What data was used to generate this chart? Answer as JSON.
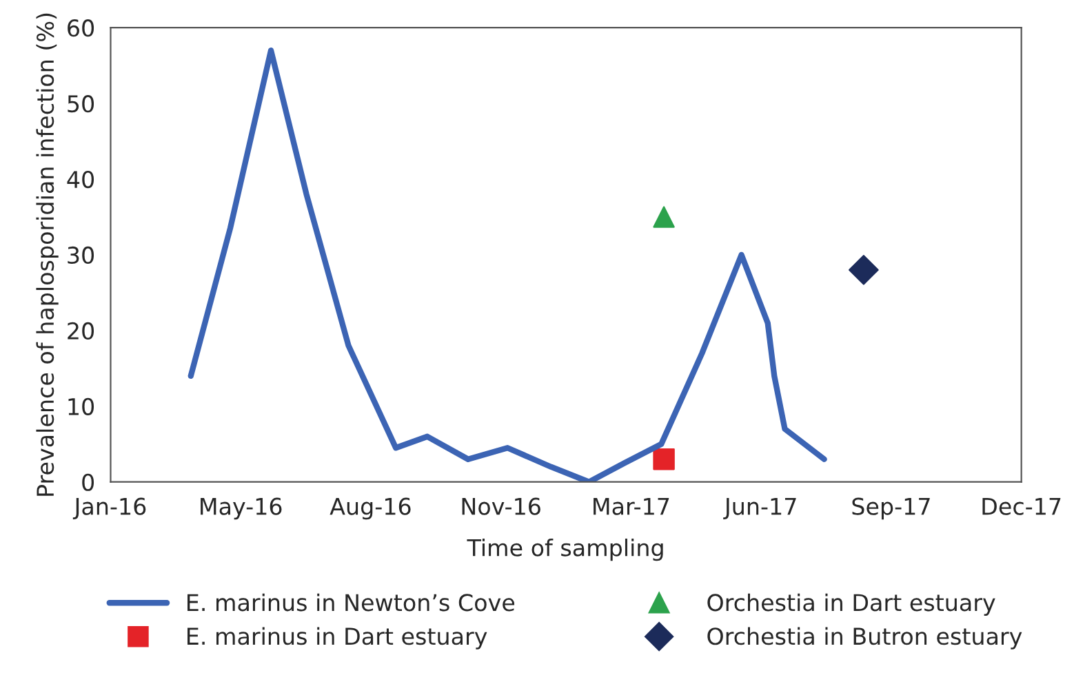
{
  "chart_data": {
    "type": "line",
    "xlabel": "Time of sampling",
    "ylabel": "Prevalence of haplosporidian infection (%)",
    "xlim": [
      "2016-01-31",
      "2017-12-24"
    ],
    "xticks": [
      {
        "value": "2016-01-31",
        "label": "Jan-16"
      },
      {
        "value": "2016-05-09",
        "label": "May-16"
      },
      {
        "value": "2016-08-16",
        "label": "Aug-16"
      },
      {
        "value": "2016-11-23",
        "label": "Nov-16"
      },
      {
        "value": "2017-03-02",
        "label": "Mar-17"
      },
      {
        "value": "2017-06-09",
        "label": "Jun-17"
      },
      {
        "value": "2017-09-16",
        "label": "Sep-17"
      },
      {
        "value": "2017-12-24",
        "label": "Dec-17"
      }
    ],
    "ylim": [
      0,
      60
    ],
    "yticks": [
      0,
      10,
      20,
      30,
      40,
      50,
      60
    ],
    "grid": false,
    "legend": "bottom",
    "series": [
      {
        "name": "E. marinus in Newton’s Cove",
        "type": "line",
        "marker": "none",
        "color": "#3c64b4",
        "x": [
          "2016-04-01",
          "2016-05-01",
          "2016-06-01",
          "2016-06-28",
          "2016-07-30",
          "2016-09-04",
          "2016-09-28",
          "2016-10-29",
          "2016-11-28",
          "2016-12-31",
          "2017-01-29",
          "2017-02-25",
          "2017-03-25",
          "2017-04-25",
          "2017-05-25",
          "2017-06-14",
          "2017-06-19",
          "2017-06-27",
          "2017-07-27"
        ],
        "values": [
          14,
          33.5,
          57,
          38,
          18,
          4.5,
          6,
          3,
          4.5,
          2,
          0,
          2.5,
          5,
          17,
          30,
          21,
          14,
          7,
          3
        ]
      },
      {
        "name": "E. marinus in Dart estuary",
        "type": "scatter",
        "marker": "square",
        "color": "#e42328",
        "x": [
          "2017-03-27"
        ],
        "values": [
          3
        ]
      },
      {
        "name": "Orchestia in Dart estuary",
        "type": "scatter",
        "marker": "triangle",
        "color": "#2ca24c",
        "x": [
          "2017-03-27"
        ],
        "values": [
          35
        ]
      },
      {
        "name": "Orchestia in Butron estuary",
        "type": "scatter",
        "marker": "diamond",
        "color": "#1c2b5a",
        "x": [
          "2017-08-26"
        ],
        "values": [
          28
        ]
      }
    ]
  }
}
